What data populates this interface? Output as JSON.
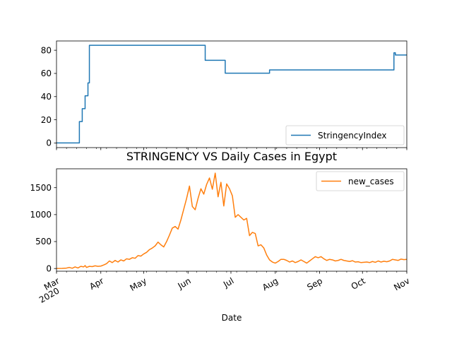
{
  "chart_data": [
    {
      "type": "line",
      "title": "",
      "xlabel": "",
      "ylabel": "",
      "ylim": [
        -4,
        88
      ],
      "yticks": [
        0,
        20,
        40,
        60,
        80
      ],
      "x_range": [
        "2020-03-01",
        "2020-11-01"
      ],
      "legend": "lower-right",
      "grid": false,
      "series": [
        {
          "name": "StringencyIndex",
          "color": "#1f77b4",
          "step": true,
          "points": [
            [
              "2020-03-01",
              0
            ],
            [
              "2020-03-17",
              0
            ],
            [
              "2020-03-17",
              18.5
            ],
            [
              "2020-03-19",
              18.5
            ],
            [
              "2020-03-19",
              29.6
            ],
            [
              "2020-03-21",
              29.6
            ],
            [
              "2020-03-21",
              40.7
            ],
            [
              "2020-03-23",
              40.7
            ],
            [
              "2020-03-23",
              51.8
            ],
            [
              "2020-03-24",
              51.8
            ],
            [
              "2020-03-24",
              84.3
            ],
            [
              "2020-06-13",
              84.3
            ],
            [
              "2020-06-13",
              71.3
            ],
            [
              "2020-06-27",
              71.3
            ],
            [
              "2020-06-27",
              60.2
            ],
            [
              "2020-07-28",
              60.2
            ],
            [
              "2020-07-28",
              63.0
            ],
            [
              "2020-10-23",
              63.0
            ],
            [
              "2020-10-23",
              77.8
            ],
            [
              "2020-10-24",
              77.8
            ],
            [
              "2020-10-24",
              75.9
            ],
            [
              "2020-11-08",
              75.9
            ]
          ]
        }
      ]
    },
    {
      "type": "line",
      "title": "STRINGENCY VS Daily Cases in Egypt",
      "xlabel": "Date",
      "ylabel": "",
      "ylim": [
        -50,
        1850
      ],
      "yticks": [
        0,
        500,
        1000,
        1500
      ],
      "x_range": [
        "2020-03-01",
        "2020-11-01"
      ],
      "xticks": [
        {
          "date": "2020-03-01",
          "label": "Mar",
          "sub": "2020"
        },
        {
          "date": "2020-04-01",
          "label": "Apr",
          "sub": ""
        },
        {
          "date": "2020-05-01",
          "label": "May",
          "sub": ""
        },
        {
          "date": "2020-06-01",
          "label": "Jun",
          "sub": ""
        },
        {
          "date": "2020-07-01",
          "label": "Jul",
          "sub": ""
        },
        {
          "date": "2020-08-01",
          "label": "Aug",
          "sub": ""
        },
        {
          "date": "2020-09-01",
          "label": "Sep",
          "sub": ""
        },
        {
          "date": "2020-10-01",
          "label": "Oct",
          "sub": ""
        },
        {
          "date": "2020-11-01",
          "label": "Nov",
          "sub": ""
        }
      ],
      "legend": "upper-right",
      "grid": false,
      "series": [
        {
          "name": "new_cases",
          "color": "#ff7f0e",
          "step": false,
          "points": [
            [
              "2020-03-01",
              0
            ],
            [
              "2020-03-05",
              2
            ],
            [
              "2020-03-08",
              8
            ],
            [
              "2020-03-10",
              20
            ],
            [
              "2020-03-12",
              5
            ],
            [
              "2020-03-14",
              30
            ],
            [
              "2020-03-16",
              10
            ],
            [
              "2020-03-18",
              40
            ],
            [
              "2020-03-20",
              30
            ],
            [
              "2020-03-21",
              55
            ],
            [
              "2020-03-22",
              20
            ],
            [
              "2020-03-24",
              40
            ],
            [
              "2020-03-26",
              35
            ],
            [
              "2020-03-28",
              50
            ],
            [
              "2020-03-30",
              40
            ],
            [
              "2020-04-01",
              45
            ],
            [
              "2020-04-03",
              65
            ],
            [
              "2020-04-05",
              90
            ],
            [
              "2020-04-07",
              140
            ],
            [
              "2020-04-09",
              110
            ],
            [
              "2020-04-11",
              150
            ],
            [
              "2020-04-13",
              120
            ],
            [
              "2020-04-15",
              160
            ],
            [
              "2020-04-17",
              140
            ],
            [
              "2020-04-19",
              180
            ],
            [
              "2020-04-21",
              170
            ],
            [
              "2020-04-23",
              200
            ],
            [
              "2020-04-25",
              190
            ],
            [
              "2020-04-27",
              240
            ],
            [
              "2020-04-29",
              230
            ],
            [
              "2020-05-01",
              270
            ],
            [
              "2020-05-03",
              300
            ],
            [
              "2020-05-05",
              350
            ],
            [
              "2020-05-07",
              380
            ],
            [
              "2020-05-09",
              420
            ],
            [
              "2020-05-11",
              490
            ],
            [
              "2020-05-13",
              440
            ],
            [
              "2020-05-15",
              400
            ],
            [
              "2020-05-17",
              500
            ],
            [
              "2020-05-19",
              620
            ],
            [
              "2020-05-21",
              750
            ],
            [
              "2020-05-23",
              780
            ],
            [
              "2020-05-25",
              730
            ],
            [
              "2020-05-27",
              900
            ],
            [
              "2020-05-29",
              1100
            ],
            [
              "2020-05-31",
              1300
            ],
            [
              "2020-06-02",
              1530
            ],
            [
              "2020-06-04",
              1150
            ],
            [
              "2020-06-06",
              1090
            ],
            [
              "2020-06-08",
              1300
            ],
            [
              "2020-06-10",
              1480
            ],
            [
              "2020-06-12",
              1380
            ],
            [
              "2020-06-14",
              1560
            ],
            [
              "2020-06-16",
              1680
            ],
            [
              "2020-06-18",
              1470
            ],
            [
              "2020-06-20",
              1770
            ],
            [
              "2020-06-22",
              1330
            ],
            [
              "2020-06-24",
              1600
            ],
            [
              "2020-06-26",
              1160
            ],
            [
              "2020-06-28",
              1570
            ],
            [
              "2020-06-30",
              1480
            ],
            [
              "2020-07-02",
              1350
            ],
            [
              "2020-07-04",
              950
            ],
            [
              "2020-07-06",
              1000
            ],
            [
              "2020-07-08",
              950
            ],
            [
              "2020-07-10",
              900
            ],
            [
              "2020-07-12",
              930
            ],
            [
              "2020-07-14",
              610
            ],
            [
              "2020-07-16",
              670
            ],
            [
              "2020-07-18",
              650
            ],
            [
              "2020-07-20",
              420
            ],
            [
              "2020-07-22",
              440
            ],
            [
              "2020-07-24",
              380
            ],
            [
              "2020-07-26",
              250
            ],
            [
              "2020-07-28",
              160
            ],
            [
              "2020-07-30",
              120
            ],
            [
              "2020-08-01",
              100
            ],
            [
              "2020-08-03",
              130
            ],
            [
              "2020-08-05",
              170
            ],
            [
              "2020-08-07",
              170
            ],
            [
              "2020-08-09",
              150
            ],
            [
              "2020-08-11",
              120
            ],
            [
              "2020-08-13",
              140
            ],
            [
              "2020-08-15",
              110
            ],
            [
              "2020-08-17",
              130
            ],
            [
              "2020-08-19",
              160
            ],
            [
              "2020-08-21",
              130
            ],
            [
              "2020-08-23",
              100
            ],
            [
              "2020-08-25",
              140
            ],
            [
              "2020-08-27",
              180
            ],
            [
              "2020-08-29",
              220
            ],
            [
              "2020-08-31",
              200
            ],
            [
              "2020-09-02",
              220
            ],
            [
              "2020-09-04",
              180
            ],
            [
              "2020-09-06",
              150
            ],
            [
              "2020-09-08",
              170
            ],
            [
              "2020-09-10",
              160
            ],
            [
              "2020-09-12",
              140
            ],
            [
              "2020-09-14",
              150
            ],
            [
              "2020-09-16",
              170
            ],
            [
              "2020-09-18",
              150
            ],
            [
              "2020-09-20",
              140
            ],
            [
              "2020-09-22",
              130
            ],
            [
              "2020-09-24",
              145
            ],
            [
              "2020-09-26",
              120
            ],
            [
              "2020-09-28",
              125
            ],
            [
              "2020-09-30",
              110
            ],
            [
              "2020-10-02",
              115
            ],
            [
              "2020-10-04",
              120
            ],
            [
              "2020-10-06",
              110
            ],
            [
              "2020-10-08",
              130
            ],
            [
              "2020-10-10",
              115
            ],
            [
              "2020-10-12",
              140
            ],
            [
              "2020-10-14",
              120
            ],
            [
              "2020-10-16",
              135
            ],
            [
              "2020-10-18",
              125
            ],
            [
              "2020-10-20",
              140
            ],
            [
              "2020-10-22",
              170
            ],
            [
              "2020-10-24",
              160
            ],
            [
              "2020-10-26",
              150
            ],
            [
              "2020-10-28",
              175
            ],
            [
              "2020-10-30",
              165
            ],
            [
              "2020-11-01",
              170
            ],
            [
              "2020-11-03",
              190
            ]
          ]
        }
      ]
    }
  ]
}
